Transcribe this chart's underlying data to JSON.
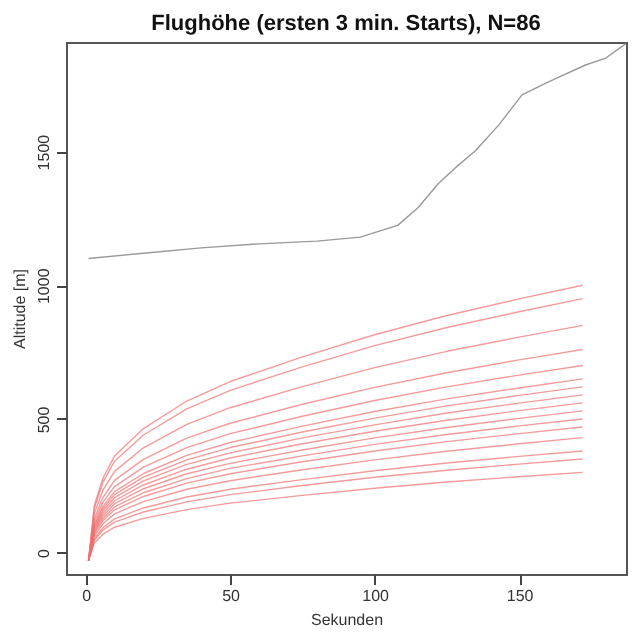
{
  "chart_data": {
    "type": "line",
    "title": "Flughöhe (ersten 3 min. Starts), N=86",
    "xlabel": "Sekunden",
    "ylabel": "Altitude [m]",
    "xlim": [
      -6.8,
      187
    ],
    "ylim": [
      -80,
      1910
    ],
    "xticks": [
      0,
      50,
      100,
      150
    ],
    "yticks": [
      0,
      500,
      1000,
      1500
    ],
    "grid": false,
    "marker": "none",
    "line_style": "solid",
    "series": [
      {
        "color": "#999999",
        "x": [
          1,
          20,
          40,
          60,
          80,
          95,
          108,
          115,
          122,
          128,
          135,
          143,
          151,
          160,
          173,
          180,
          187
        ],
        "values": [
          1100,
          1120,
          1140,
          1155,
          1165,
          1180,
          1224,
          1290,
          1380,
          1440,
          1504,
          1600,
          1712,
          1760,
          1824,
          1850,
          1904
        ]
      },
      {
        "color": "#f07070",
        "x": [
          1,
          3,
          6,
          10,
          20,
          35,
          50,
          75,
          100,
          125,
          150,
          172
        ],
        "values": [
          -30,
          36,
          69,
          95,
          128,
          161,
          185,
          214,
          241,
          264,
          284,
          300
        ]
      },
      {
        "color": "#f07070",
        "x": [
          1,
          3,
          6,
          10,
          20,
          35,
          50,
          75,
          100,
          125,
          150,
          172
        ],
        "values": [
          -30,
          46,
          84,
          114,
          152,
          190,
          217,
          251,
          282,
          308,
          331,
          350
        ]
      },
      {
        "color": "#f07070",
        "x": [
          1,
          3,
          6,
          10,
          20,
          35,
          50,
          75,
          100,
          125,
          150,
          172
        ],
        "values": [
          -30,
          52,
          93,
          126,
          167,
          208,
          237,
          273,
          306,
          335,
          360,
          380
        ]
      },
      {
        "color": "#f07070",
        "x": [
          1,
          3,
          6,
          10,
          20,
          35,
          50,
          75,
          100,
          125,
          150,
          172
        ],
        "values": [
          -30,
          62,
          108,
          145,
          191,
          237,
          269,
          310,
          347,
          379,
          407,
          430
        ]
      },
      {
        "color": "#f07070",
        "x": [
          1,
          3,
          6,
          10,
          20,
          35,
          50,
          75,
          100,
          125,
          150,
          172
        ],
        "values": [
          -30,
          70,
          120,
          160,
          210,
          260,
          295,
          340,
          380,
          415,
          445,
          470
        ]
      },
      {
        "color": "#f07070",
        "x": [
          1,
          3,
          6,
          10,
          20,
          35,
          50,
          75,
          100,
          125,
          150,
          172
        ],
        "values": [
          -30,
          76,
          129,
          171,
          224,
          277,
          315,
          362,
          405,
          442,
          474,
          500
        ]
      },
      {
        "color": "#f07070",
        "x": [
          1,
          3,
          6,
          10,
          20,
          35,
          50,
          75,
          100,
          125,
          150,
          172
        ],
        "values": [
          -30,
          82,
          138,
          183,
          239,
          295,
          334,
          384,
          429,
          468,
          502,
          530
        ]
      },
      {
        "color": "#f07070",
        "x": [
          1,
          3,
          6,
          10,
          20,
          35,
          50,
          75,
          100,
          125,
          150,
          172
        ],
        "values": [
          -30,
          88,
          147,
          194,
          253,
          312,
          354,
          407,
          454,
          495,
          531,
          560
        ]
      },
      {
        "color": "#f07070",
        "x": [
          1,
          3,
          6,
          10,
          20,
          35,
          50,
          75,
          100,
          125,
          150,
          172
        ],
        "values": [
          -30,
          94,
          156,
          206,
          268,
          330,
          373,
          429,
          478,
          522,
          559,
          590
        ]
      },
      {
        "color": "#f07070",
        "x": [
          1,
          3,
          6,
          10,
          20,
          35,
          50,
          75,
          100,
          125,
          150,
          172
        ],
        "values": [
          -30,
          100,
          165,
          217,
          282,
          347,
          393,
          451,
          503,
          549,
          588,
          620
        ]
      },
      {
        "color": "#f07070",
        "x": [
          1,
          3,
          6,
          10,
          20,
          35,
          50,
          75,
          100,
          125,
          150,
          172
        ],
        "values": [
          -30,
          106,
          174,
          228,
          296,
          364,
          412,
          473,
          528,
          575,
          616,
          650
        ]
      },
      {
        "color": "#f07070",
        "x": [
          1,
          3,
          6,
          10,
          20,
          35,
          50,
          75,
          100,
          125,
          150,
          172
        ],
        "values": [
          -30,
          116,
          189,
          247,
          320,
          393,
          445,
          510,
          569,
          620,
          664,
          700
        ]
      },
      {
        "color": "#f07070",
        "x": [
          1,
          3,
          6,
          10,
          20,
          35,
          50,
          75,
          100,
          125,
          150,
          172
        ],
        "values": [
          -30,
          128,
          207,
          270,
          349,
          428,
          484,
          555,
          618,
          673,
          721,
          760
        ]
      },
      {
        "color": "#f07070",
        "x": [
          1,
          3,
          6,
          10,
          20,
          35,
          50,
          75,
          100,
          125,
          150,
          172
        ],
        "values": [
          -30,
          146,
          234,
          304,
          392,
          480,
          542,
          621,
          692,
          753,
          806,
          850
        ]
      },
      {
        "color": "#f07070",
        "x": [
          1,
          3,
          6,
          10,
          20,
          35,
          50,
          75,
          100,
          125,
          150,
          172
        ],
        "values": [
          -30,
          166,
          264,
          342,
          440,
          538,
          607,
          695,
          774,
          842,
          901,
          950
        ]
      },
      {
        "color": "#f07070",
        "x": [
          1,
          3,
          6,
          10,
          20,
          35,
          50,
          75,
          100,
          125,
          150,
          172
        ],
        "values": [
          -30,
          176,
          279,
          361,
          464,
          567,
          640,
          732,
          815,
          887,
          949,
          1000
        ]
      }
    ]
  }
}
